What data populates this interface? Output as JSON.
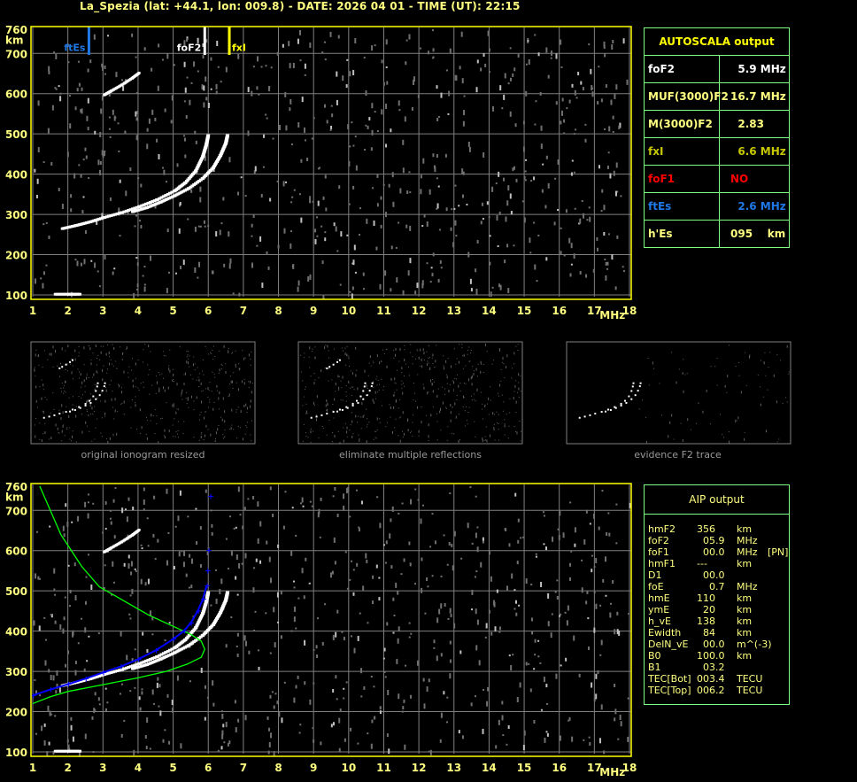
{
  "header": {
    "title": "La_Spezia (lat: +44.1, lon: 009.8) - DATE: 2026 04 01 - TIME (UT): 22:15"
  },
  "colors": {
    "axis": "#ffff00",
    "grid": "#808080",
    "table_border": "#80ff80",
    "ftEs": "#1e78e6",
    "foF2": "#ffffff",
    "fxI": "#ffff00",
    "foF1": "#ff0000",
    "profile": "#00ff00",
    "fit": "#0000ff"
  },
  "chart_data": [
    {
      "type": "scatter",
      "xlabel": "MHz",
      "ylabel": "km",
      "xlim": [
        1,
        18
      ],
      "ylim": [
        100,
        760
      ],
      "xticks": [
        "1",
        "2",
        "3",
        "4",
        "5",
        "6",
        "7",
        "8",
        "9",
        "10",
        "11",
        "12",
        "13",
        "14",
        "15",
        "16",
        "17",
        "18"
      ],
      "yticks": [
        "100",
        "200",
        "300",
        "400",
        "500",
        "600",
        "700",
        "760"
      ],
      "grid": true,
      "markers": [
        {
          "label": "ftEs",
          "freq": 2.6,
          "color": "#1e78e6"
        },
        {
          "label": "foF2",
          "freq": 5.9,
          "color": "#ffffff"
        },
        {
          "label": "fxI",
          "freq": 6.6,
          "color": "#ffff00"
        }
      ],
      "o_trace": [
        [
          1.8,
          268
        ],
        [
          2.2,
          276
        ],
        [
          2.6,
          285
        ],
        [
          3,
          296
        ],
        [
          3.5,
          308
        ],
        [
          4,
          323
        ],
        [
          4.5,
          340
        ],
        [
          5,
          362
        ],
        [
          5.3,
          382
        ],
        [
          5.6,
          412
        ],
        [
          5.8,
          448
        ],
        [
          5.9,
          478
        ],
        [
          5.95,
          500
        ]
      ],
      "x_trace": [
        [
          3.8,
          310
        ],
        [
          4.2,
          320
        ],
        [
          4.6,
          334
        ],
        [
          5,
          350
        ],
        [
          5.4,
          368
        ],
        [
          5.8,
          393
        ],
        [
          6.1,
          420
        ],
        [
          6.3,
          450
        ],
        [
          6.45,
          480
        ],
        [
          6.5,
          500
        ]
      ],
      "second_hop": [
        [
          3,
          600
        ],
        [
          3.2,
          610
        ],
        [
          3.5,
          625
        ],
        [
          3.8,
          642
        ],
        [
          4,
          655
        ]
      ],
      "e_trace": [
        [
          1.6,
          105
        ],
        [
          2.0,
          105
        ],
        [
          2.3,
          105
        ]
      ]
    },
    {
      "type": "line",
      "xlabel": "MHz",
      "ylabel": "km",
      "xlim": [
        1,
        18
      ],
      "ylim": [
        100,
        760
      ],
      "xticks": [
        "1",
        "2",
        "3",
        "4",
        "5",
        "6",
        "7",
        "8",
        "9",
        "10",
        "11",
        "12",
        "13",
        "14",
        "15",
        "16",
        "17",
        "18"
      ],
      "yticks": [
        "100",
        "200",
        "300",
        "400",
        "500",
        "600",
        "700",
        "760"
      ],
      "grid": true,
      "o_trace": [
        [
          1.8,
          268
        ],
        [
          2.2,
          276
        ],
        [
          2.6,
          285
        ],
        [
          3,
          296
        ],
        [
          3.5,
          308
        ],
        [
          4,
          323
        ],
        [
          4.5,
          340
        ],
        [
          5,
          362
        ],
        [
          5.3,
          382
        ],
        [
          5.6,
          412
        ],
        [
          5.8,
          448
        ],
        [
          5.9,
          478
        ],
        [
          5.95,
          500
        ]
      ],
      "x_trace": [
        [
          3.8,
          310
        ],
        [
          4.2,
          320
        ],
        [
          4.6,
          334
        ],
        [
          5,
          350
        ],
        [
          5.4,
          368
        ],
        [
          5.8,
          393
        ],
        [
          6.1,
          420
        ],
        [
          6.3,
          450
        ],
        [
          6.45,
          480
        ],
        [
          6.5,
          500
        ]
      ],
      "second_hop": [
        [
          3,
          600
        ],
        [
          3.2,
          610
        ],
        [
          3.5,
          625
        ],
        [
          3.8,
          642
        ],
        [
          4,
          655
        ]
      ],
      "e_trace": [
        [
          1.6,
          105
        ],
        [
          2.0,
          105
        ],
        [
          2.3,
          105
        ]
      ],
      "fit_trace": [
        [
          1,
          240
        ],
        [
          1.5,
          255
        ],
        [
          2,
          268
        ],
        [
          2.5,
          282
        ],
        [
          3,
          297
        ],
        [
          3.5,
          312
        ],
        [
          4,
          330
        ],
        [
          4.5,
          352
        ],
        [
          5,
          380
        ],
        [
          5.3,
          400
        ],
        [
          5.5,
          420
        ],
        [
          5.7,
          450
        ],
        [
          5.85,
          480
        ],
        [
          5.95,
          512
        ],
        [
          5.97,
          550
        ],
        [
          6.0,
          600
        ],
        [
          6.05,
          735
        ]
      ],
      "profile": [
        [
          1,
          220
        ],
        [
          1.5,
          237
        ],
        [
          2,
          250
        ],
        [
          3,
          267
        ],
        [
          4,
          284
        ],
        [
          4.8,
          300
        ],
        [
          5.4,
          318
        ],
        [
          5.8,
          335
        ],
        [
          5.9,
          355
        ],
        [
          5.8,
          375
        ],
        [
          5.5,
          392
        ],
        [
          5.0,
          412
        ],
        [
          4.3,
          440
        ],
        [
          3.6,
          475
        ],
        [
          2.9,
          510
        ],
        [
          2.4,
          560
        ],
        [
          2.1,
          600
        ],
        [
          1.8,
          640
        ],
        [
          1.5,
          700
        ],
        [
          1.2,
          760
        ]
      ]
    }
  ],
  "autoscala": {
    "title": "AUTOSCALA output",
    "rows": [
      {
        "label": "foF2",
        "value": "  5.9 MHz",
        "color": "#ffffff"
      },
      {
        "label": "MUF(3000)F2",
        "value": "16.7 MHz",
        "color": "#ffff80"
      },
      {
        "label": "M(3000)F2",
        "value": "  2.83",
        "color": "#ffff80"
      },
      {
        "label": "fxI",
        "value": "  6.6 MHz",
        "color": "#c8c800"
      },
      {
        "label": "foF1",
        "value": "NO",
        "color": "#ff0000"
      },
      {
        "label": "ftEs",
        "value": "  2.6 MHz",
        "color": "#1e78e6"
      },
      {
        "label": "h'Es",
        "value": "095    km",
        "color": "#ffff80"
      }
    ]
  },
  "aip": {
    "title": "AIP output",
    "rows": [
      [
        "hmF2",
        "356",
        "km",
        ""
      ],
      [
        "foF2",
        "  05.9",
        "MHz",
        ""
      ],
      [
        "foF1",
        "  00.0",
        "MHz",
        "[PN]"
      ],
      [
        "hmF1",
        "---",
        "km",
        ""
      ],
      [
        "D1",
        "  00.0",
        "",
        ""
      ],
      [
        "foE",
        "    0.7",
        "MHz",
        ""
      ],
      [
        "hmE",
        "110",
        "km",
        ""
      ],
      [
        "ymE",
        "  20",
        "km",
        ""
      ],
      [
        "h_vE",
        "138",
        "km",
        ""
      ],
      [
        "Ewidth",
        "  84",
        "km",
        ""
      ],
      [
        "DelN_vE",
        "  00.0",
        "m^(-3)",
        ""
      ],
      [
        "B0",
        "100.0",
        "km",
        ""
      ],
      [
        "B1",
        "  03.2",
        "",
        ""
      ],
      [
        "TEC[Bot]",
        "003.4",
        "TECU",
        ""
      ],
      [
        "TEC[Top]",
        "006.2",
        "TECU",
        ""
      ]
    ]
  },
  "thumbnails": [
    {
      "caption": "original ionogram resized"
    },
    {
      "caption": "eliminate multiple reflections"
    },
    {
      "caption": "evidence F2 trace"
    }
  ]
}
